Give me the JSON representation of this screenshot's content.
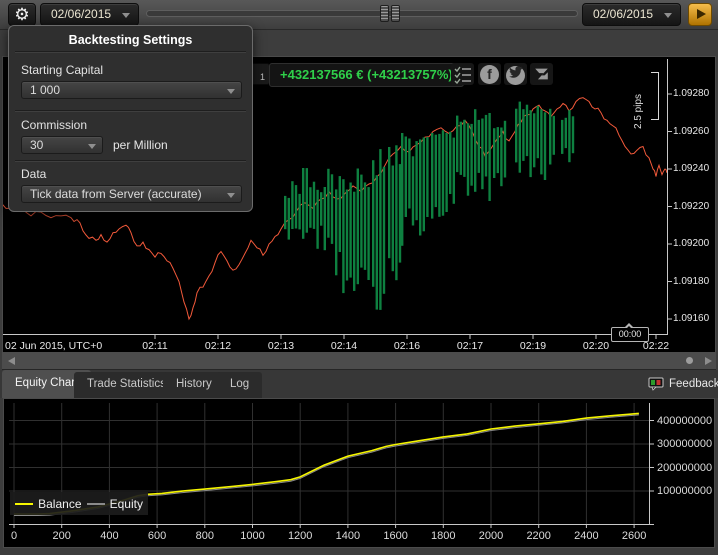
{
  "top_bar": {
    "start_date": "02/06/2015",
    "end_date": "02/06/2015"
  },
  "settings_panel": {
    "title": "Backtesting Settings",
    "starting_capital_label": "Starting Capital",
    "starting_capital_value": "1 000",
    "commission_label": "Commission",
    "commission_value": "30",
    "commission_suffix": "per Million",
    "data_label": "Data",
    "data_value": "Tick data from Server (accurate)"
  },
  "toolbar": {
    "timeframe": "1",
    "profit": "+432137566 € (+43213757%)",
    "icons": [
      "checklist-icon",
      "facebook-icon",
      "twitter-icon",
      "logo-icon"
    ]
  },
  "main_chart_labels": {
    "scale": "2.5 pips",
    "date": "02 Jun 2015, UTC+0",
    "callout": "00:00"
  },
  "tabs": {
    "items": [
      "Equity Chart",
      "Trade Statistics",
      "History",
      "Log"
    ],
    "active": "Equity Chart",
    "feedback": "Feedback"
  },
  "colors": {
    "profit_green": "#2fd04a",
    "bar_green": "#0e8040",
    "price_line": "#f2593a",
    "balance_yellow": "#f6f600",
    "equity_gray": "#8a8a8a",
    "grid": "#303030",
    "axis": "#c8c8c8"
  },
  "chart_data": [
    {
      "type": "line",
      "description": "Tick price chart with trade position bars",
      "x_axis": "time, 02 Jun 2015 UTC+0",
      "y_axis": "price",
      "ylim": [
        1.09152,
        1.09293
      ],
      "y_ticks": [
        {
          "label": "1.09280",
          "value": 1.0928
        },
        {
          "label": "1.09260",
          "value": 1.0926
        },
        {
          "label": "1.09240",
          "value": 1.0924
        },
        {
          "label": "1.09220",
          "value": 1.0922
        },
        {
          "label": "1.09200",
          "value": 1.092
        },
        {
          "label": "1.09180",
          "value": 1.0918
        },
        {
          "label": "1.09160",
          "value": 1.0916
        }
      ],
      "x_ticks": [
        {
          "label": "02:11",
          "x": 154
        },
        {
          "label": "02:12",
          "x": 217
        },
        {
          "label": "02:13",
          "x": 280
        },
        {
          "label": "02:14",
          "x": 343
        },
        {
          "label": "02:16",
          "x": 406
        },
        {
          "label": "02:17",
          "x": 469
        },
        {
          "label": "02:19",
          "x": 532
        },
        {
          "label": "02:20",
          "x": 595
        },
        {
          "label": "02:22",
          "x": 655
        }
      ],
      "price_points": [
        [
          0,
          1.09222
        ],
        [
          10,
          1.09219
        ],
        [
          20,
          1.09221
        ],
        [
          30,
          1.09215
        ],
        [
          40,
          1.09217
        ],
        [
          50,
          1.09214
        ],
        [
          60,
          1.09215
        ],
        [
          70,
          1.09214
        ],
        [
          76,
          1.09213
        ],
        [
          82,
          1.09207
        ],
        [
          88,
          1.09203
        ],
        [
          95,
          1.09202
        ],
        [
          100,
          1.09205
        ],
        [
          106,
          1.09201
        ],
        [
          112,
          1.09206
        ],
        [
          118,
          1.09208
        ],
        [
          125,
          1.0921
        ],
        [
          130,
          1.09206
        ],
        [
          136,
          1.09199
        ],
        [
          142,
          1.09201
        ],
        [
          148,
          1.09197
        ],
        [
          154,
          1.09193
        ],
        [
          160,
          1.09195
        ],
        [
          166,
          1.09191
        ],
        [
          172,
          1.09187
        ],
        [
          178,
          1.0918
        ],
        [
          183,
          1.09169
        ],
        [
          188,
          1.0916
        ],
        [
          192,
          1.09166
        ],
        [
          196,
          1.09174
        ],
        [
          202,
          1.09177
        ],
        [
          208,
          1.09183
        ],
        [
          214,
          1.0919
        ],
        [
          220,
          1.09196
        ],
        [
          226,
          1.09191
        ],
        [
          232,
          1.09186
        ],
        [
          238,
          1.09189
        ],
        [
          244,
          1.09195
        ],
        [
          250,
          1.09202
        ],
        [
          256,
          1.09198
        ],
        [
          262,
          1.09194
        ],
        [
          268,
          1.092
        ],
        [
          274,
          1.09204
        ],
        [
          280,
          1.09208
        ],
        [
          288,
          1.09213
        ],
        [
          296,
          1.09218
        ],
        [
          304,
          1.09222
        ],
        [
          312,
          1.09219
        ],
        [
          320,
          1.09224
        ],
        [
          328,
          1.09228
        ],
        [
          336,
          1.09224
        ],
        [
          344,
          1.09227
        ],
        [
          352,
          1.09231
        ],
        [
          360,
          1.09228
        ],
        [
          368,
          1.09232
        ],
        [
          376,
          1.09236
        ],
        [
          384,
          1.09242
        ],
        [
          392,
          1.09248
        ],
        [
          400,
          1.09252
        ],
        [
          408,
          1.09249
        ],
        [
          416,
          1.09253
        ],
        [
          424,
          1.09257
        ],
        [
          432,
          1.0926
        ],
        [
          440,
          1.09262
        ],
        [
          448,
          1.09259
        ],
        [
          456,
          1.09263
        ],
        [
          464,
          1.09266
        ],
        [
          472,
          1.09259
        ],
        [
          478,
          1.09252
        ],
        [
          484,
          1.09247
        ],
        [
          490,
          1.09251
        ],
        [
          496,
          1.09256
        ],
        [
          502,
          1.0926
        ],
        [
          508,
          1.09255
        ],
        [
          514,
          1.0926
        ],
        [
          520,
          1.09265
        ],
        [
          526,
          1.09269
        ],
        [
          532,
          1.09272
        ],
        [
          538,
          1.09274
        ],
        [
          544,
          1.09271
        ],
        [
          550,
          1.09268
        ],
        [
          556,
          1.09272
        ],
        [
          562,
          1.09275
        ],
        [
          568,
          1.09271
        ],
        [
          575,
          1.09276
        ],
        [
          582,
          1.09278
        ],
        [
          588,
          1.09276
        ],
        [
          594,
          1.09272
        ],
        [
          600,
          1.0927
        ],
        [
          606,
          1.09266
        ],
        [
          612,
          1.09263
        ],
        [
          618,
          1.09258
        ],
        [
          624,
          1.09252
        ],
        [
          630,
          1.09248
        ],
        [
          636,
          1.0925
        ],
        [
          642,
          1.09252
        ],
        [
          648,
          1.09246
        ],
        [
          652,
          1.0924
        ],
        [
          655,
          1.09236
        ],
        [
          658,
          1.09242
        ],
        [
          661,
          1.09237
        ],
        [
          664,
          1.0924
        ],
        [
          666,
          1.09238
        ]
      ],
      "trade_clusters": [
        {
          "x0": 283,
          "x1": 333,
          "top_hi": 1.09241,
          "top_lo": 1.09224,
          "bot_hi": 1.0921,
          "bot_lo": 1.09196
        },
        {
          "x0": 334,
          "x1": 371,
          "top_hi": 1.09243,
          "top_lo": 1.09226,
          "bot_hi": 1.09196,
          "bot_lo": 1.09172
        },
        {
          "x0": 371,
          "x1": 387,
          "top_hi": 1.09252,
          "top_lo": 1.09235,
          "bot_hi": 1.0918,
          "bot_lo": 1.09158
        },
        {
          "x0": 387,
          "x1": 400,
          "top_hi": 1.09254,
          "top_lo": 1.0924,
          "bot_hi": 1.092,
          "bot_lo": 1.09178
        },
        {
          "x0": 400,
          "x1": 430,
          "top_hi": 1.0926,
          "top_lo": 1.09246,
          "bot_hi": 1.09224,
          "bot_lo": 1.09196
        },
        {
          "x0": 430,
          "x1": 455,
          "top_hi": 1.09264,
          "top_lo": 1.09252,
          "bot_hi": 1.09228,
          "bot_lo": 1.0921
        },
        {
          "x0": 455,
          "x1": 492,
          "top_hi": 1.09273,
          "top_lo": 1.09262,
          "bot_hi": 1.0924,
          "bot_lo": 1.09222
        },
        {
          "x0": 492,
          "x1": 506,
          "top_hi": 1.0927,
          "top_lo": 1.0926,
          "bot_hi": 1.09238,
          "bot_lo": 1.09228
        },
        {
          "x0": 514,
          "x1": 546,
          "top_hi": 1.09277,
          "top_lo": 1.09267,
          "bot_hi": 1.09248,
          "bot_lo": 1.09234
        },
        {
          "x0": 548,
          "x1": 557,
          "top_hi": 1.09275,
          "top_lo": 1.09268,
          "bot_hi": 1.0925,
          "bot_lo": 1.09242
        },
        {
          "x0": 560,
          "x1": 573,
          "top_hi": 1.09276,
          "top_lo": 1.09266,
          "bot_hi": 1.09252,
          "bot_lo": 1.09243
        }
      ]
    },
    {
      "type": "line",
      "title": "Equity Chart",
      "xlim": [
        0,
        2660
      ],
      "ylim": [
        0,
        450000000
      ],
      "x_ticks": [
        0,
        200,
        400,
        600,
        800,
        1000,
        1200,
        1400,
        1600,
        1800,
        2000,
        2200,
        2400,
        2600
      ],
      "y_ticks": [
        {
          "label": "400000000",
          "value": 400000000
        },
        {
          "label": "300000000",
          "value": 300000000
        },
        {
          "label": "200000000",
          "value": 200000000
        },
        {
          "label": "100000000",
          "value": 100000000
        }
      ],
      "series": [
        {
          "name": "Balance",
          "color": "#f6f600",
          "points": [
            [
              0,
              2000000
            ],
            [
              100,
              2000000
            ],
            [
              150,
              4000000
            ],
            [
              250,
              16000000
            ],
            [
              350,
              32000000
            ],
            [
              450,
              58000000
            ],
            [
              520,
              80000000
            ],
            [
              560,
              86000000
            ],
            [
              620,
              90000000
            ],
            [
              700,
              99000000
            ],
            [
              800,
              108000000
            ],
            [
              900,
              118000000
            ],
            [
              1000,
              128000000
            ],
            [
              1100,
              140000000
            ],
            [
              1160,
              148000000
            ],
            [
              1200,
              160000000
            ],
            [
              1300,
              210000000
            ],
            [
              1400,
              248000000
            ],
            [
              1450,
              260000000
            ],
            [
              1500,
              272000000
            ],
            [
              1560,
              290000000
            ],
            [
              1600,
              298000000
            ],
            [
              1700,
              314000000
            ],
            [
              1800,
              330000000
            ],
            [
              1900,
              343000000
            ],
            [
              2000,
              364000000
            ],
            [
              2100,
              376000000
            ],
            [
              2200,
              386000000
            ],
            [
              2300,
              396000000
            ],
            [
              2400,
              410000000
            ],
            [
              2500,
              420000000
            ],
            [
              2620,
              430000000
            ]
          ]
        },
        {
          "name": "Equity",
          "color": "#8a8a8a",
          "points_same_as": "Balance"
        }
      ]
    }
  ]
}
